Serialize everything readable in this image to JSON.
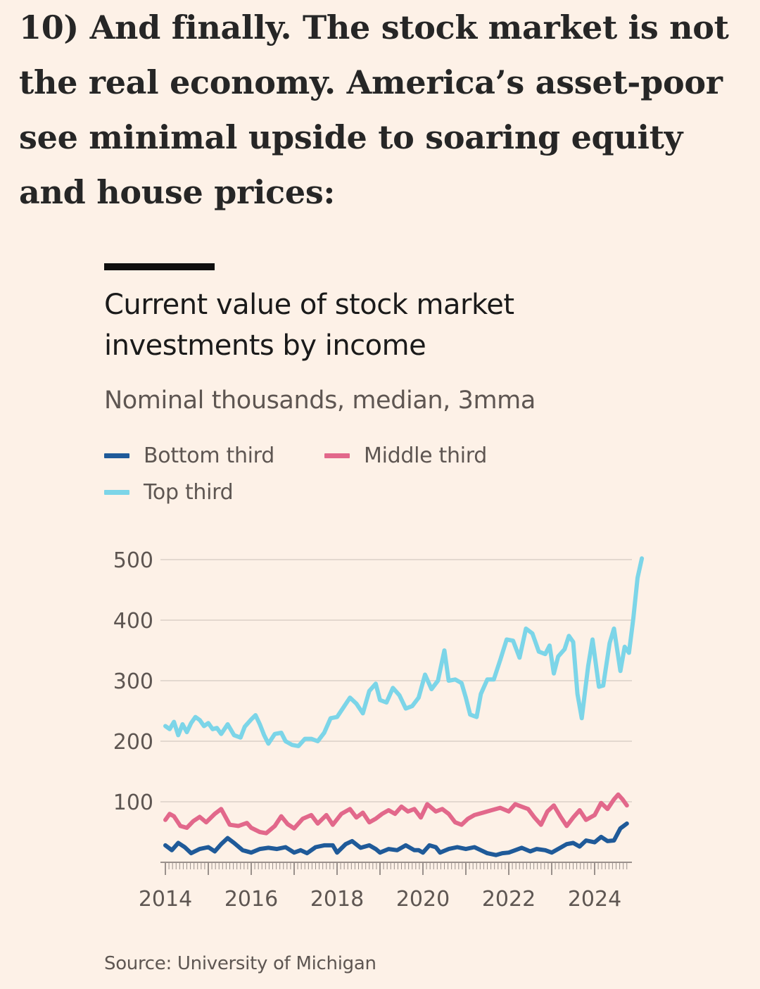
{
  "article": {
    "heading": "10) And finally. The stock market is not the real economy. America’s asset-poor see minimal upside to soaring equity and house prices:"
  },
  "colors": {
    "background": "#FDF1E7",
    "bottom_third": "#1F5A99",
    "middle_third": "#E2688B",
    "top_third": "#7CD5E8",
    "gridline": "#E3D8CF",
    "axis": "#9A918C"
  },
  "chart_data": {
    "type": "line",
    "title": "Current value of stock market investments by income",
    "subtitle": "Nominal thousands, median, 3mma",
    "source": "Source: University of Michigan",
    "xlabel": "",
    "ylabel": "",
    "ylim": [
      0,
      500
    ],
    "xlim": [
      2014,
      2024.75
    ],
    "yticks": [
      100,
      200,
      300,
      400,
      500
    ],
    "xticks": [
      2014,
      2016,
      2018,
      2020,
      2022,
      2024
    ],
    "grid": true,
    "legend_placement": "top-left",
    "series": [
      {
        "name": "Bottom third",
        "color_key": "bottom_third",
        "points": [
          [
            2014.0,
            28
          ],
          [
            2014.15,
            20
          ],
          [
            2014.3,
            32
          ],
          [
            2014.45,
            25
          ],
          [
            2014.6,
            15
          ],
          [
            2014.8,
            22
          ],
          [
            2015.0,
            25
          ],
          [
            2015.15,
            18
          ],
          [
            2015.3,
            30
          ],
          [
            2015.45,
            40
          ],
          [
            2015.6,
            32
          ],
          [
            2015.8,
            20
          ],
          [
            2016.0,
            16
          ],
          [
            2016.2,
            22
          ],
          [
            2016.4,
            24
          ],
          [
            2016.6,
            22
          ],
          [
            2016.8,
            25
          ],
          [
            2017.0,
            16
          ],
          [
            2017.15,
            20
          ],
          [
            2017.3,
            15
          ],
          [
            2017.5,
            25
          ],
          [
            2017.7,
            28
          ],
          [
            2017.9,
            28
          ],
          [
            2018.0,
            16
          ],
          [
            2018.2,
            30
          ],
          [
            2018.35,
            35
          ],
          [
            2018.55,
            24
          ],
          [
            2018.75,
            28
          ],
          [
            2018.9,
            22
          ],
          [
            2019.0,
            16
          ],
          [
            2019.2,
            22
          ],
          [
            2019.4,
            20
          ],
          [
            2019.6,
            28
          ],
          [
            2019.8,
            20
          ],
          [
            2019.9,
            20
          ],
          [
            2020.0,
            16
          ],
          [
            2020.15,
            28
          ],
          [
            2020.3,
            25
          ],
          [
            2020.4,
            16
          ],
          [
            2020.6,
            22
          ],
          [
            2020.8,
            25
          ],
          [
            2021.0,
            22
          ],
          [
            2021.2,
            25
          ],
          [
            2021.35,
            20
          ],
          [
            2021.5,
            15
          ],
          [
            2021.7,
            12
          ],
          [
            2021.85,
            15
          ],
          [
            2022.0,
            16
          ],
          [
            2022.15,
            20
          ],
          [
            2022.3,
            24
          ],
          [
            2022.5,
            18
          ],
          [
            2022.65,
            22
          ],
          [
            2022.85,
            20
          ],
          [
            2023.0,
            16
          ],
          [
            2023.2,
            24
          ],
          [
            2023.35,
            30
          ],
          [
            2023.5,
            32
          ],
          [
            2023.65,
            26
          ],
          [
            2023.8,
            36
          ],
          [
            2024.0,
            33
          ],
          [
            2024.15,
            42
          ],
          [
            2024.3,
            35
          ],
          [
            2024.45,
            36
          ],
          [
            2024.6,
            56
          ],
          [
            2024.75,
            64
          ]
        ]
      },
      {
        "name": "Middle third",
        "color_key": "middle_third",
        "points": [
          [
            2014.0,
            70
          ],
          [
            2014.1,
            80
          ],
          [
            2014.2,
            76
          ],
          [
            2014.35,
            60
          ],
          [
            2014.5,
            57
          ],
          [
            2014.65,
            68
          ],
          [
            2014.8,
            75
          ],
          [
            2014.95,
            66
          ],
          [
            2015.15,
            80
          ],
          [
            2015.3,
            88
          ],
          [
            2015.5,
            62
          ],
          [
            2015.7,
            60
          ],
          [
            2015.9,
            65
          ],
          [
            2016.0,
            57
          ],
          [
            2016.2,
            50
          ],
          [
            2016.35,
            48
          ],
          [
            2016.55,
            60
          ],
          [
            2016.7,
            76
          ],
          [
            2016.85,
            63
          ],
          [
            2017.0,
            56
          ],
          [
            2017.2,
            72
          ],
          [
            2017.4,
            78
          ],
          [
            2017.55,
            64
          ],
          [
            2017.75,
            78
          ],
          [
            2017.9,
            62
          ],
          [
            2018.1,
            80
          ],
          [
            2018.3,
            88
          ],
          [
            2018.45,
            74
          ],
          [
            2018.6,
            82
          ],
          [
            2018.75,
            66
          ],
          [
            2018.9,
            72
          ],
          [
            2019.05,
            80
          ],
          [
            2019.2,
            86
          ],
          [
            2019.35,
            80
          ],
          [
            2019.5,
            92
          ],
          [
            2019.65,
            84
          ],
          [
            2019.8,
            88
          ],
          [
            2019.95,
            74
          ],
          [
            2020.1,
            96
          ],
          [
            2020.3,
            84
          ],
          [
            2020.45,
            88
          ],
          [
            2020.6,
            80
          ],
          [
            2020.75,
            66
          ],
          [
            2020.9,
            62
          ],
          [
            2021.05,
            72
          ],
          [
            2021.2,
            78
          ],
          [
            2021.4,
            82
          ],
          [
            2021.6,
            86
          ],
          [
            2021.8,
            90
          ],
          [
            2022.0,
            84
          ],
          [
            2022.15,
            96
          ],
          [
            2022.3,
            92
          ],
          [
            2022.45,
            88
          ],
          [
            2022.6,
            74
          ],
          [
            2022.75,
            62
          ],
          [
            2022.9,
            84
          ],
          [
            2023.05,
            94
          ],
          [
            2023.2,
            76
          ],
          [
            2023.35,
            60
          ],
          [
            2023.5,
            74
          ],
          [
            2023.65,
            86
          ],
          [
            2023.8,
            70
          ],
          [
            2024.0,
            78
          ],
          [
            2024.15,
            98
          ],
          [
            2024.3,
            88
          ],
          [
            2024.45,
            104
          ],
          [
            2024.55,
            112
          ],
          [
            2024.65,
            104
          ],
          [
            2024.75,
            94
          ]
        ]
      },
      {
        "name": "Top third",
        "color_key": "top_third",
        "points": [
          [
            2014.0,
            225
          ],
          [
            2014.1,
            220
          ],
          [
            2014.2,
            232
          ],
          [
            2014.3,
            210
          ],
          [
            2014.4,
            228
          ],
          [
            2014.5,
            215
          ],
          [
            2014.6,
            230
          ],
          [
            2014.7,
            240
          ],
          [
            2014.8,
            235
          ],
          [
            2014.9,
            225
          ],
          [
            2015.0,
            230
          ],
          [
            2015.1,
            220
          ],
          [
            2015.2,
            222
          ],
          [
            2015.3,
            212
          ],
          [
            2015.45,
            228
          ],
          [
            2015.6,
            210
          ],
          [
            2015.75,
            206
          ],
          [
            2015.85,
            224
          ],
          [
            2016.0,
            236
          ],
          [
            2016.1,
            243
          ],
          [
            2016.2,
            228
          ],
          [
            2016.3,
            210
          ],
          [
            2016.4,
            196
          ],
          [
            2016.55,
            212
          ],
          [
            2016.7,
            214
          ],
          [
            2016.8,
            200
          ],
          [
            2016.95,
            194
          ],
          [
            2017.1,
            192
          ],
          [
            2017.25,
            204
          ],
          [
            2017.4,
            204
          ],
          [
            2017.55,
            200
          ],
          [
            2017.7,
            214
          ],
          [
            2017.85,
            238
          ],
          [
            2018.0,
            240
          ],
          [
            2018.15,
            256
          ],
          [
            2018.3,
            272
          ],
          [
            2018.45,
            262
          ],
          [
            2018.6,
            246
          ],
          [
            2018.75,
            283
          ],
          [
            2018.9,
            295
          ],
          [
            2019.0,
            268
          ],
          [
            2019.15,
            264
          ],
          [
            2019.3,
            288
          ],
          [
            2019.45,
            276
          ],
          [
            2019.6,
            254
          ],
          [
            2019.75,
            258
          ],
          [
            2019.9,
            272
          ],
          [
            2020.05,
            310
          ],
          [
            2020.2,
            286
          ],
          [
            2020.35,
            300
          ],
          [
            2020.5,
            350
          ],
          [
            2020.6,
            300
          ],
          [
            2020.75,
            302
          ],
          [
            2020.9,
            296
          ],
          [
            2021.0,
            272
          ],
          [
            2021.1,
            244
          ],
          [
            2021.25,
            240
          ],
          [
            2021.35,
            278
          ],
          [
            2021.5,
            302
          ],
          [
            2021.65,
            302
          ],
          [
            2021.8,
            334
          ],
          [
            2021.95,
            368
          ],
          [
            2022.1,
            366
          ],
          [
            2022.25,
            338
          ],
          [
            2022.4,
            386
          ],
          [
            2022.55,
            378
          ],
          [
            2022.7,
            348
          ],
          [
            2022.85,
            344
          ],
          [
            2022.95,
            358
          ],
          [
            2023.05,
            312
          ],
          [
            2023.15,
            340
          ],
          [
            2023.3,
            352
          ],
          [
            2023.4,
            374
          ],
          [
            2023.5,
            364
          ],
          [
            2023.6,
            278
          ],
          [
            2023.7,
            238
          ],
          [
            2023.85,
            324
          ],
          [
            2023.95,
            368
          ],
          [
            2024.1,
            290
          ],
          [
            2024.2,
            292
          ],
          [
            2024.35,
            362
          ],
          [
            2024.45,
            386
          ],
          [
            2024.55,
            340
          ],
          [
            2024.6,
            316
          ],
          [
            2024.7,
            356
          ],
          [
            2024.8,
            346
          ],
          [
            2024.9,
            402
          ],
          [
            2025.0,
            470
          ],
          [
            2025.1,
            502
          ]
        ]
      }
    ]
  },
  "legend": {
    "bottom": "Bottom third",
    "middle": "Middle third",
    "top": "Top third"
  }
}
